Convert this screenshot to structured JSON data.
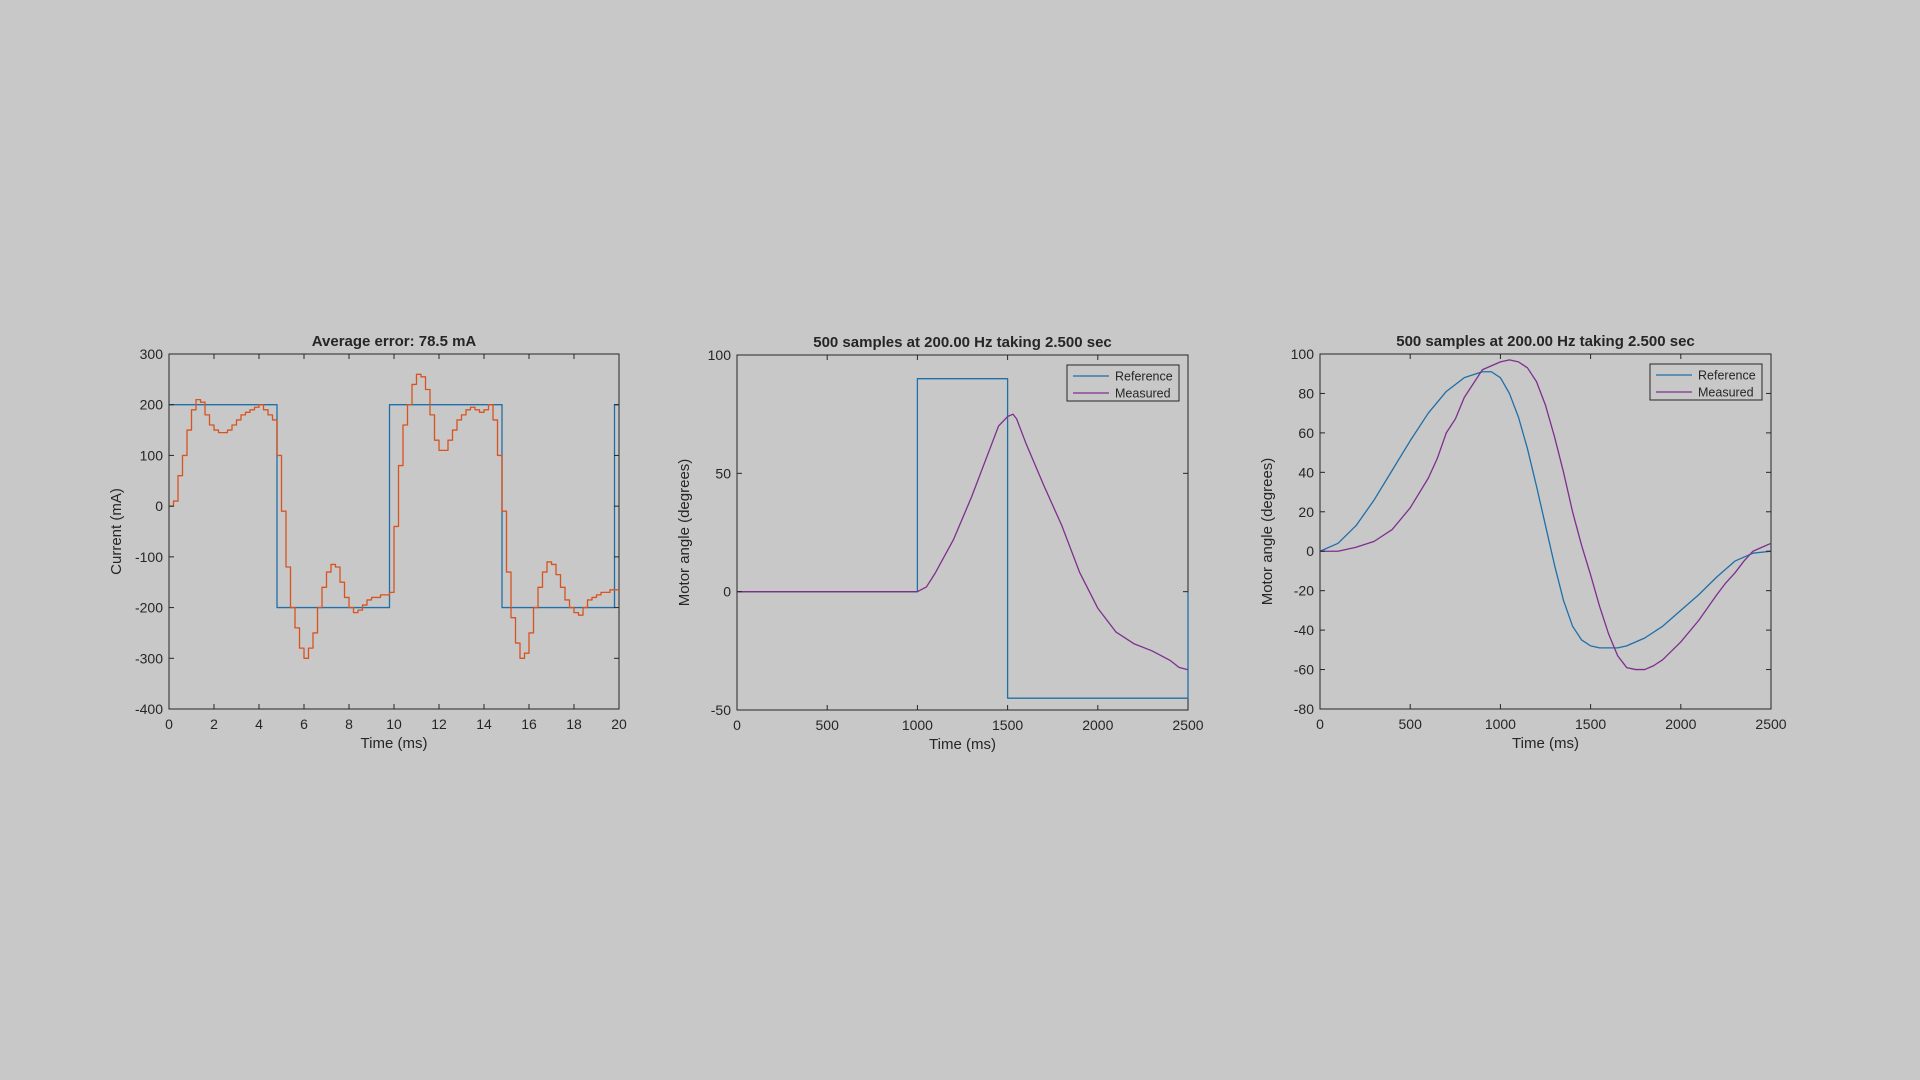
{
  "colors": {
    "background": "#c8c8c8",
    "axes": "#262626",
    "reference": "#1f6fa8",
    "measured_current": "#d9531e",
    "measured_angle": "#7e2f8e"
  },
  "chart_data": [
    {
      "type": "line",
      "title": "Average error:  78.5 mA",
      "xlabel": "Time (ms)",
      "ylabel": "Current (mA)",
      "xlim": [
        0,
        20
      ],
      "ylim": [
        -400,
        300
      ],
      "xticks": [
        0,
        2,
        4,
        6,
        8,
        10,
        12,
        14,
        16,
        18,
        20
      ],
      "yticks": [
        -400,
        -300,
        -200,
        -100,
        0,
        100,
        200,
        300
      ],
      "xtick_labels": [
        "0",
        "2",
        "4",
        "6",
        "8",
        "10",
        "12",
        "14",
        "16",
        "18",
        "20"
      ],
      "ytick_labels": [
        "-400",
        "-300",
        "-200",
        "-100",
        "0",
        "100",
        "200",
        "300"
      ],
      "grid": false,
      "legend": null,
      "series": [
        {
          "color": "#1f6fa8",
          "step": true,
          "x": [
            0,
            4.8,
            4.8,
            9.8,
            9.8,
            14.8,
            14.8,
            19.8,
            19.8,
            20
          ],
          "y": [
            200,
            200,
            -200,
            -200,
            200,
            200,
            -200,
            -200,
            200,
            200
          ]
        },
        {
          "color": "#d9531e",
          "step": true,
          "x": [
            0,
            0.2,
            0.4,
            0.6,
            0.8,
            1.0,
            1.2,
            1.4,
            1.6,
            1.8,
            2.0,
            2.2,
            2.4,
            2.6,
            2.8,
            3.0,
            3.2,
            3.4,
            3.6,
            3.8,
            4.0,
            4.2,
            4.4,
            4.6,
            4.8,
            5.0,
            5.2,
            5.4,
            5.6,
            5.8,
            6.0,
            6.2,
            6.4,
            6.6,
            6.8,
            7.0,
            7.2,
            7.4,
            7.6,
            7.8,
            8.0,
            8.2,
            8.4,
            8.6,
            8.8,
            9.0,
            9.2,
            9.4,
            9.6,
            9.8,
            10.0,
            10.2,
            10.4,
            10.6,
            10.8,
            11.0,
            11.2,
            11.4,
            11.6,
            11.8,
            12.0,
            12.2,
            12.4,
            12.6,
            12.8,
            13.0,
            13.2,
            13.4,
            13.6,
            13.8,
            14.0,
            14.2,
            14.4,
            14.6,
            14.8,
            15.0,
            15.2,
            15.4,
            15.6,
            15.8,
            16.0,
            16.2,
            16.4,
            16.6,
            16.8,
            17.0,
            17.2,
            17.4,
            17.6,
            17.8,
            18.0,
            18.2,
            18.4,
            18.6,
            18.8,
            19.0,
            19.2,
            19.4,
            19.6,
            19.8,
            20.0
          ],
          "y": [
            0,
            10,
            60,
            100,
            150,
            190,
            210,
            205,
            180,
            160,
            150,
            145,
            145,
            150,
            160,
            170,
            180,
            185,
            190,
            195,
            200,
            190,
            180,
            170,
            100,
            -10,
            -120,
            -200,
            -240,
            -280,
            -300,
            -280,
            -250,
            -200,
            -160,
            -130,
            -115,
            -120,
            -150,
            -180,
            -200,
            -210,
            -205,
            -195,
            -185,
            -180,
            -180,
            -175,
            -175,
            -170,
            -40,
            80,
            160,
            200,
            240,
            260,
            255,
            230,
            180,
            130,
            110,
            110,
            130,
            150,
            170,
            180,
            190,
            195,
            190,
            185,
            190,
            200,
            170,
            100,
            -10,
            -130,
            -220,
            -270,
            -300,
            -290,
            -250,
            -200,
            -160,
            -130,
            -110,
            -115,
            -135,
            -160,
            -185,
            -200,
            -210,
            -215,
            -200,
            -185,
            -180,
            -175,
            -170,
            -170,
            -165,
            -165,
            -165
          ]
        }
      ]
    },
    {
      "type": "line",
      "title": "500 samples at  200.00 Hz taking 2.500 sec",
      "xlabel": "Time (ms)",
      "ylabel": "Motor angle (degrees)",
      "xlim": [
        0,
        2500
      ],
      "ylim": [
        -50,
        100
      ],
      "xticks": [
        0,
        500,
        1000,
        1500,
        2000,
        2500
      ],
      "yticks": [
        -50,
        0,
        50,
        100
      ],
      "xtick_labels": [
        "0",
        "500",
        "1000",
        "1500",
        "2000",
        "2500"
      ],
      "ytick_labels": [
        "-50",
        "0",
        "50",
        "100"
      ],
      "grid": false,
      "legend": {
        "position": "top-right",
        "entries": [
          "Reference",
          "Measured"
        ]
      },
      "series": [
        {
          "name": "Reference",
          "color": "#1f6fa8",
          "x": [
            0,
            1000,
            1000,
            1500,
            1500,
            2500,
            2500
          ],
          "y": [
            0,
            0,
            90,
            90,
            -45,
            -45,
            0
          ]
        },
        {
          "name": "Measured",
          "color": "#7e2f8e",
          "x": [
            0,
            1000,
            1050,
            1100,
            1200,
            1300,
            1400,
            1450,
            1500,
            1530,
            1550,
            1600,
            1700,
            1800,
            1850,
            1900,
            2000,
            2100,
            2200,
            2300,
            2400,
            2450,
            2500
          ],
          "y": [
            0,
            0,
            2,
            8,
            22,
            40,
            60,
            70,
            74,
            75,
            73,
            63,
            45,
            28,
            18,
            8,
            -7,
            -17,
            -22,
            -25,
            -29,
            -32,
            -33
          ]
        }
      ]
    },
    {
      "type": "line",
      "title": "500 samples at  200.00 Hz taking 2.500 sec",
      "xlabel": "Time (ms)",
      "ylabel": "Motor angle (degrees)",
      "xlim": [
        0,
        2500
      ],
      "ylim": [
        -80,
        100
      ],
      "xticks": [
        0,
        500,
        1000,
        1500,
        2000,
        2500
      ],
      "yticks": [
        -80,
        -60,
        -40,
        -20,
        0,
        20,
        40,
        60,
        80,
        100
      ],
      "xtick_labels": [
        "0",
        "500",
        "1000",
        "1500",
        "2000",
        "2500"
      ],
      "ytick_labels": [
        "-80",
        "-60",
        "-40",
        "-20",
        "0",
        "20",
        "40",
        "60",
        "80",
        "100"
      ],
      "grid": false,
      "legend": {
        "position": "top-right",
        "entries": [
          "Reference",
          "Measured"
        ]
      },
      "series": [
        {
          "name": "Reference",
          "color": "#1f6fa8",
          "x": [
            0,
            100,
            200,
            300,
            400,
            500,
            600,
            700,
            800,
            900,
            950,
            1000,
            1050,
            1100,
            1150,
            1200,
            1250,
            1300,
            1350,
            1400,
            1450,
            1500,
            1550,
            1600,
            1650,
            1700,
            1800,
            1900,
            2000,
            2100,
            2200,
            2300,
            2400,
            2500
          ],
          "y": [
            0,
            4,
            13,
            26,
            41,
            56,
            70,
            81,
            88,
            91,
            91,
            88,
            80,
            68,
            52,
            33,
            13,
            -7,
            -25,
            -38,
            -45,
            -48,
            -49,
            -49,
            -49,
            -48,
            -44,
            -38,
            -30,
            -22,
            -13,
            -5,
            -1,
            0
          ]
        },
        {
          "name": "Measured",
          "color": "#7e2f8e",
          "x": [
            0,
            100,
            150,
            200,
            300,
            400,
            500,
            600,
            650,
            700,
            750,
            800,
            900,
            1000,
            1050,
            1100,
            1150,
            1200,
            1250,
            1300,
            1350,
            1400,
            1450,
            1500,
            1550,
            1600,
            1650,
            1700,
            1750,
            1800,
            1850,
            1900,
            2000,
            2100,
            2200,
            2250,
            2300,
            2350,
            2400,
            2450,
            2500
          ],
          "y": [
            0,
            0,
            1,
            2,
            5,
            11,
            22,
            37,
            47,
            60,
            67,
            78,
            92,
            96,
            97,
            96,
            93,
            86,
            74,
            58,
            40,
            20,
            3,
            -12,
            -28,
            -42,
            -53,
            -59,
            -60,
            -60,
            -58,
            -55,
            -46,
            -35,
            -22,
            -16,
            -11,
            -5,
            0,
            2,
            4
          ]
        }
      ]
    }
  ]
}
